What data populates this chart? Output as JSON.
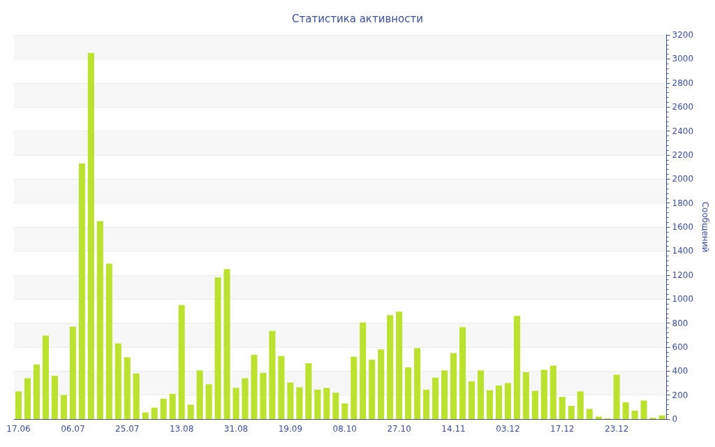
{
  "chart_data": {
    "type": "bar",
    "title": "Статистика активности",
    "ylabel": "Сообщений",
    "categories": [
      "17.06",
      null,
      null,
      null,
      null,
      null,
      "06.07",
      null,
      null,
      null,
      null,
      null,
      "25.07",
      null,
      null,
      null,
      null,
      null,
      "13.08",
      null,
      null,
      null,
      null,
      null,
      "31.08",
      null,
      null,
      null,
      null,
      null,
      "19.09",
      null,
      null,
      null,
      null,
      null,
      "08.10",
      null,
      null,
      null,
      null,
      null,
      "27.10",
      null,
      null,
      null,
      null,
      null,
      "14.11",
      null,
      null,
      null,
      null,
      null,
      "03.12",
      null,
      null,
      null,
      null,
      null,
      "17.12",
      null,
      null,
      null,
      null,
      null,
      "23.12",
      null,
      null,
      null,
      null,
      null
    ],
    "values": [
      230,
      340,
      455,
      695,
      360,
      200,
      770,
      2130,
      3050,
      1650,
      1295,
      630,
      515,
      380,
      55,
      95,
      170,
      210,
      950,
      120,
      405,
      290,
      1180,
      1250,
      260,
      340,
      535,
      385,
      735,
      525,
      305,
      265,
      465,
      245,
      260,
      220,
      130,
      520,
      805,
      495,
      580,
      865,
      895,
      430,
      590,
      245,
      345,
      405,
      550,
      765,
      315,
      405,
      240,
      280,
      300,
      860,
      390,
      235,
      410,
      445,
      185,
      110,
      230,
      85,
      20,
      5,
      370,
      140,
      70,
      155,
      10,
      30
    ],
    "color": "#bde12f",
    "ylim": [
      0,
      3200
    ],
    "yticks": [
      0,
      200,
      400,
      600,
      800,
      1000,
      1200,
      1400,
      1600,
      1800,
      2000,
      2200,
      2400,
      2600,
      2800,
      3000,
      3200
    ],
    "grid": "y"
  }
}
